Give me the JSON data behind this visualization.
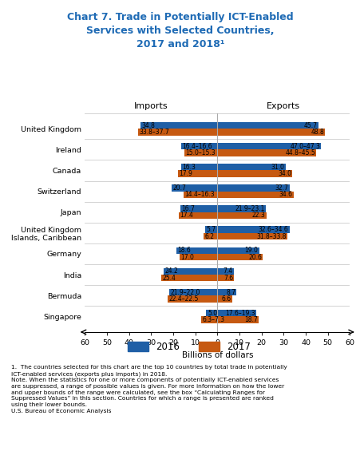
{
  "title": "Chart 7. Trade in Potentially ICT-Enabled\nServices with Selected Countries,\n2017 and 2018¹",
  "title_color": "#1F6BB5",
  "countries": [
    "United Kingdom",
    "Ireland",
    "Canada",
    "Switzerland",
    "Japan",
    "United Kingdom\nIslands, Caribbean",
    "Germany",
    "India",
    "Bermuda",
    "Singapore"
  ],
  "imports_2016": [
    34.8,
    16.4,
    16.3,
    20.7,
    16.7,
    5.7,
    18.6,
    24.2,
    21.9,
    5.0
  ],
  "imports_2017": [
    35.8,
    15.0,
    17.9,
    15.4,
    17.4,
    6.2,
    17.0,
    25.4,
    22.5,
    7.3
  ],
  "exports_2016": [
    45.7,
    47.0,
    31.0,
    32.7,
    21.9,
    32.6,
    19.0,
    7.4,
    8.7,
    17.6
  ],
  "exports_2017": [
    48.8,
    44.8,
    34.0,
    34.6,
    22.3,
    31.8,
    20.6,
    7.6,
    6.6,
    18.7
  ],
  "imports_2016_label": [
    "34.8",
    "16.4–16.6",
    "16.3",
    "20.7",
    "16.7",
    "5.7",
    "18.6",
    "24.2",
    "21.9–22.0",
    "5.0"
  ],
  "imports_2017_label": [
    "33.8–37.7",
    "15.0–15.3",
    "17.9",
    "14.4–16.3",
    "17.4",
    "6.2",
    "17.0",
    "25.4",
    "22.4–22.5",
    "6.3–7.3"
  ],
  "exports_2016_label": [
    "45.7",
    "47.0–47.3",
    "31.0",
    "32.7",
    "21.9–23.1",
    "32.6–34.6",
    "19.0",
    "7.4",
    "8.7",
    "17.6–19.3"
  ],
  "exports_2017_label": [
    "48.8",
    "44.8–45.5",
    "34.0",
    "34.6",
    "22.3",
    "31.8–33.8",
    "20.6",
    "7.6",
    "6.6",
    "18.7"
  ],
  "color_2016": "#1F5FA6",
  "color_2017": "#C65911",
  "bar_height": 0.32,
  "xlim": [
    -60,
    60
  ],
  "xlabel": "Billions of dollars",
  "footnote1": "1.  The countries selected for this chart are the top 10 countries by total trade in potentially\nICT-enabled services (exports plus imports) in 2018.",
  "note": "Note. When the statistics for one or more components of potentially ICT-enabled services\nare suppressed, a range of possible values is given. For more information on how the lower\nand upper bounds of the range were calculated, see the box “Calculating Ranges for\nSuppressed Values” in this section. Countries for which a range is presented are ranked\nusing their lower bounds.",
  "source": "U.S. Bureau of Economic Analysis"
}
